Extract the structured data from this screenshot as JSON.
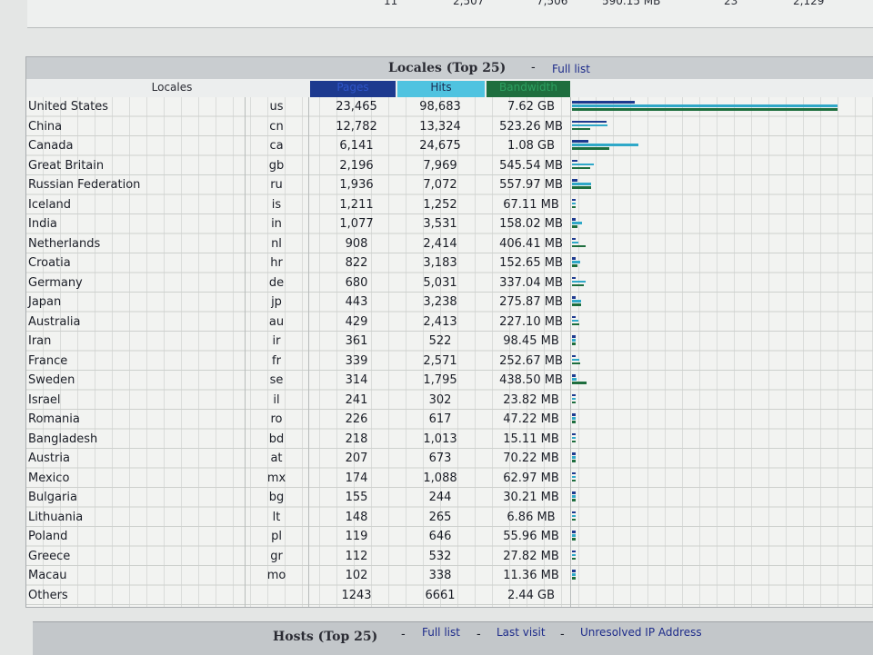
{
  "top_row": [
    "11",
    "2,507",
    "7,506",
    "590.15 MB",
    "23",
    "2,129"
  ],
  "locales_section": {
    "title": "Locales (Top 25)",
    "separator": "-",
    "full_list_link": "Full list",
    "headers": {
      "locales": "Locales",
      "pages": "Pages",
      "hits": "Hits",
      "bandwidth": "Bandwidth"
    },
    "rows": [
      {
        "name": "United States",
        "code": "us",
        "pages": "23,465",
        "hits": "98,683",
        "bandwidth": "7.62 GB"
      },
      {
        "name": "China",
        "code": "cn",
        "pages": "12,782",
        "hits": "13,324",
        "bandwidth": "523.26 MB"
      },
      {
        "name": "Canada",
        "code": "ca",
        "pages": "6,141",
        "hits": "24,675",
        "bandwidth": "1.08 GB"
      },
      {
        "name": "Great Britain",
        "code": "gb",
        "pages": "2,196",
        "hits": "7,969",
        "bandwidth": "545.54 MB"
      },
      {
        "name": "Russian Federation",
        "code": "ru",
        "pages": "1,936",
        "hits": "7,072",
        "bandwidth": "557.97 MB"
      },
      {
        "name": "Iceland",
        "code": "is",
        "pages": "1,211",
        "hits": "1,252",
        "bandwidth": "67.11 MB"
      },
      {
        "name": "India",
        "code": "in",
        "pages": "1,077",
        "hits": "3,531",
        "bandwidth": "158.02 MB"
      },
      {
        "name": "Netherlands",
        "code": "nl",
        "pages": "908",
        "hits": "2,414",
        "bandwidth": "406.41 MB"
      },
      {
        "name": "Croatia",
        "code": "hr",
        "pages": "822",
        "hits": "3,183",
        "bandwidth": "152.65 MB"
      },
      {
        "name": "Germany",
        "code": "de",
        "pages": "680",
        "hits": "5,031",
        "bandwidth": "337.04 MB"
      },
      {
        "name": "Japan",
        "code": "jp",
        "pages": "443",
        "hits": "3,238",
        "bandwidth": "275.87 MB"
      },
      {
        "name": "Australia",
        "code": "au",
        "pages": "429",
        "hits": "2,413",
        "bandwidth": "227.10 MB"
      },
      {
        "name": "Iran",
        "code": "ir",
        "pages": "361",
        "hits": "522",
        "bandwidth": "98.45 MB"
      },
      {
        "name": "France",
        "code": "fr",
        "pages": "339",
        "hits": "2,571",
        "bandwidth": "252.67 MB"
      },
      {
        "name": "Sweden",
        "code": "se",
        "pages": "314",
        "hits": "1,795",
        "bandwidth": "438.50 MB"
      },
      {
        "name": "Israel",
        "code": "il",
        "pages": "241",
        "hits": "302",
        "bandwidth": "23.82 MB"
      },
      {
        "name": "Romania",
        "code": "ro",
        "pages": "226",
        "hits": "617",
        "bandwidth": "47.22 MB"
      },
      {
        "name": "Bangladesh",
        "code": "bd",
        "pages": "218",
        "hits": "1,013",
        "bandwidth": "15.11 MB"
      },
      {
        "name": "Austria",
        "code": "at",
        "pages": "207",
        "hits": "673",
        "bandwidth": "70.22 MB"
      },
      {
        "name": "Mexico",
        "code": "mx",
        "pages": "174",
        "hits": "1,088",
        "bandwidth": "62.97 MB"
      },
      {
        "name": "Bulgaria",
        "code": "bg",
        "pages": "155",
        "hits": "244",
        "bandwidth": "30.21 MB"
      },
      {
        "name": "Lithuania",
        "code": "lt",
        "pages": "148",
        "hits": "265",
        "bandwidth": "6.86 MB"
      },
      {
        "name": "Poland",
        "code": "pl",
        "pages": "119",
        "hits": "646",
        "bandwidth": "55.96 MB"
      },
      {
        "name": "Greece",
        "code": "gr",
        "pages": "112",
        "hits": "532",
        "bandwidth": "27.82 MB"
      },
      {
        "name": "Macau",
        "code": "mo",
        "pages": "102",
        "hits": "338",
        "bandwidth": "11.36 MB"
      },
      {
        "name": "Others",
        "code": "",
        "pages": "1243",
        "hits": "6661",
        "bandwidth": "2.44 GB"
      }
    ],
    "bar_fractions": [
      {
        "pages": 0.238,
        "hits": 1.0,
        "bw": 1.0
      },
      {
        "pages": 0.13,
        "hits": 0.135,
        "bw": 0.067
      },
      {
        "pages": 0.062,
        "hits": 0.25,
        "bw": 0.142
      },
      {
        "pages": 0.022,
        "hits": 0.081,
        "bw": 0.07
      },
      {
        "pages": 0.02,
        "hits": 0.072,
        "bw": 0.071
      },
      {
        "pages": 0.012,
        "hits": 0.013,
        "bw": 0.009
      },
      {
        "pages": 0.011,
        "hits": 0.036,
        "bw": 0.02
      },
      {
        "pages": 0.009,
        "hits": 0.024,
        "bw": 0.052
      },
      {
        "pages": 0.008,
        "hits": 0.032,
        "bw": 0.02
      },
      {
        "pages": 0.007,
        "hits": 0.051,
        "bw": 0.043
      },
      {
        "pages": 0.005,
        "hits": 0.033,
        "bw": 0.035
      },
      {
        "pages": 0.004,
        "hits": 0.024,
        "bw": 0.029
      },
      {
        "pages": 0.004,
        "hits": 0.005,
        "bw": 0.013
      },
      {
        "pages": 0.003,
        "hits": 0.026,
        "bw": 0.032
      },
      {
        "pages": 0.003,
        "hits": 0.018,
        "bw": 0.056
      },
      {
        "pages": 0.002,
        "hits": 0.003,
        "bw": 0.003
      },
      {
        "pages": 0.002,
        "hits": 0.006,
        "bw": 0.006
      },
      {
        "pages": 0.002,
        "hits": 0.01,
        "bw": 0.002
      },
      {
        "pages": 0.002,
        "hits": 0.007,
        "bw": 0.009
      },
      {
        "pages": 0.002,
        "hits": 0.011,
        "bw": 0.008
      },
      {
        "pages": 0.002,
        "hits": 0.002,
        "bw": 0.004
      },
      {
        "pages": 0.002,
        "hits": 0.003,
        "bw": 0.001
      },
      {
        "pages": 0.001,
        "hits": 0.007,
        "bw": 0.007
      },
      {
        "pages": 0.001,
        "hits": 0.005,
        "bw": 0.004
      },
      {
        "pages": 0.001,
        "hits": 0.003,
        "bw": 0.001
      }
    ]
  },
  "hosts_section": {
    "title": "Hosts (Top 25)",
    "separator": "-",
    "full_list_link": "Full list",
    "last_visit_link": "Last visit",
    "unresolved_link": "Unresolved IP Address"
  }
}
